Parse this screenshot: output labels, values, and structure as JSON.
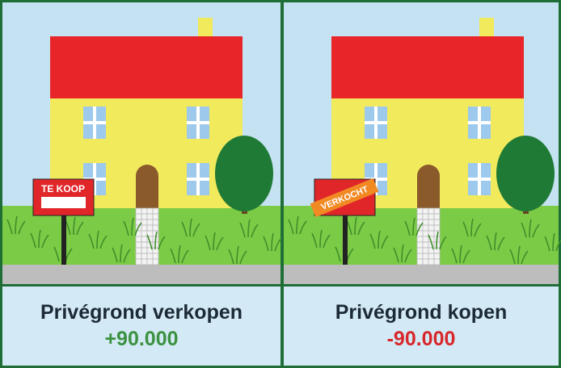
{
  "panels": [
    {
      "sign": "TE KOOP",
      "caption": "Privégrond verkopen",
      "amount": "+90.000"
    },
    {
      "sign": "VERKOCHT",
      "caption": "Privégrond kopen",
      "amount": "-90.000"
    }
  ]
}
